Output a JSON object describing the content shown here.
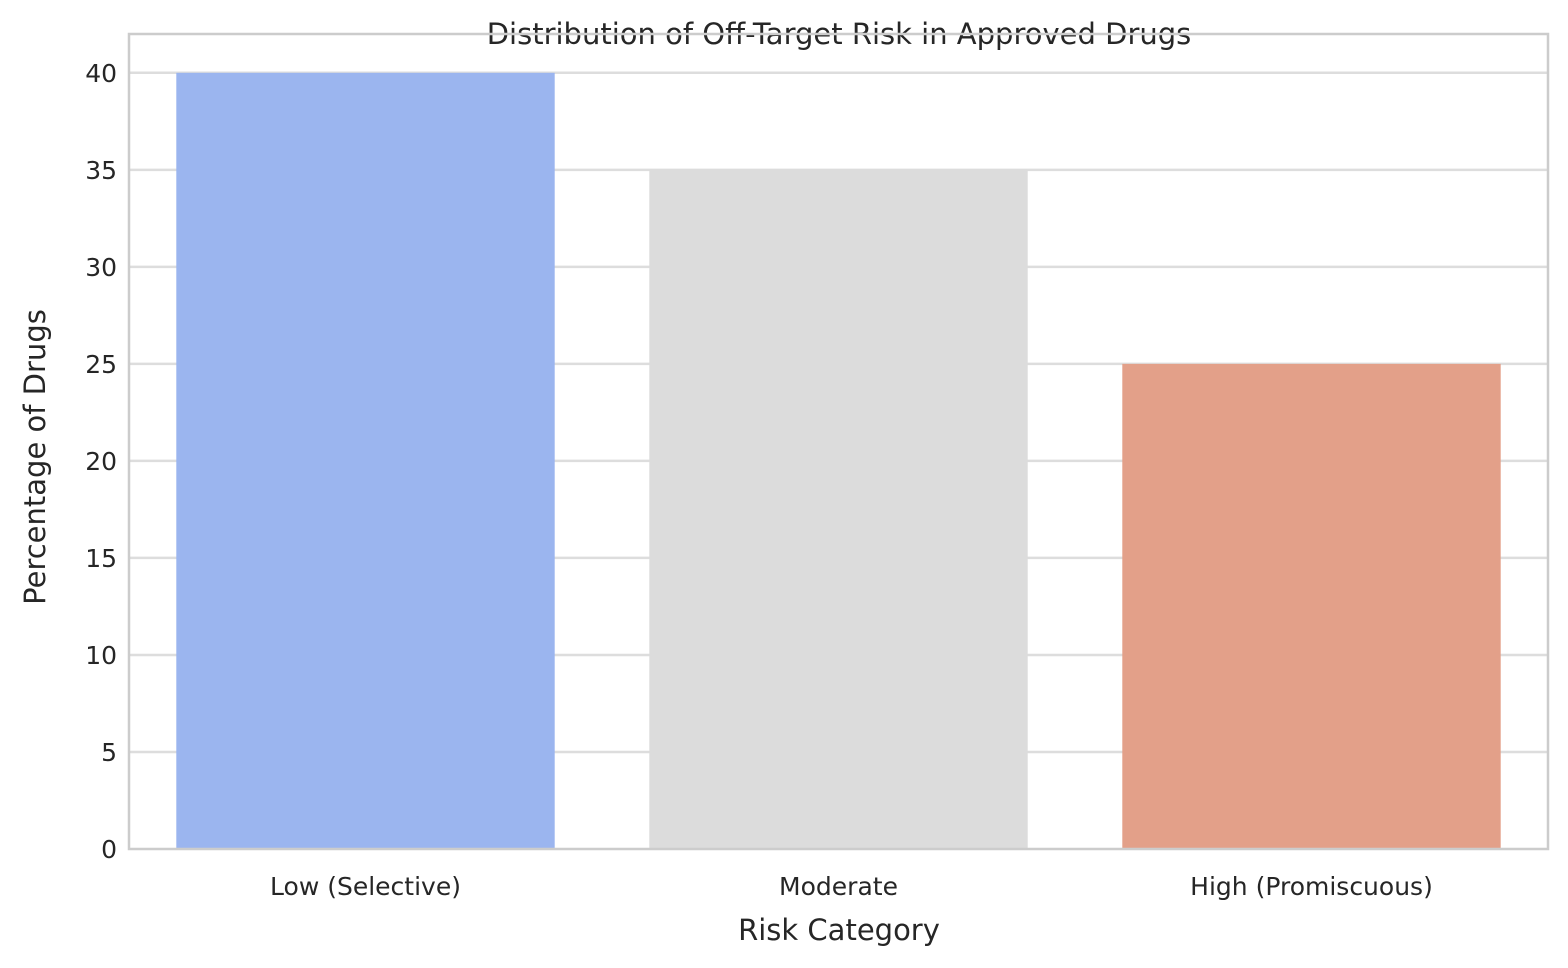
{
  "chart_data": {
    "type": "bar",
    "title": "Distribution of Off-Target Risk in Approved Drugs",
    "xlabel": "Risk Category",
    "ylabel": "Percentage of Drugs",
    "categories": [
      "Low (Selective)",
      "Moderate",
      "High (Promiscuous)"
    ],
    "values": [
      40,
      35,
      25
    ],
    "colors": [
      "#9bb5ef",
      "#dcdcdc",
      "#e3a089"
    ],
    "ylim": [
      0,
      42
    ],
    "yticks": [
      0,
      5,
      10,
      15,
      20,
      25,
      30,
      35,
      40
    ],
    "grid": true,
    "legend": "none"
  }
}
